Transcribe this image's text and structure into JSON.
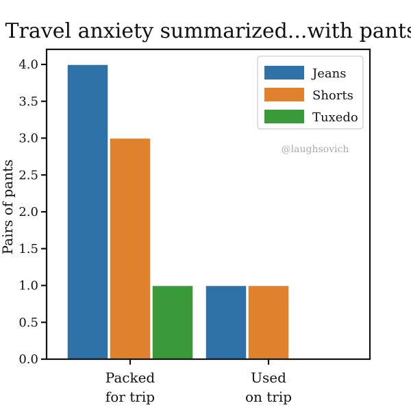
{
  "chart_data": {
    "type": "bar",
    "title": "Travel anxiety summarized...with pants",
    "xlabel": "",
    "ylabel": "Pairs of pants",
    "categories": [
      [
        "Packed",
        "for trip"
      ],
      [
        "Used",
        "on trip"
      ]
    ],
    "series": [
      {
        "name": "Jeans",
        "values": [
          4,
          1
        ],
        "color": "#2f72a8"
      },
      {
        "name": "Shorts",
        "values": [
          3,
          1
        ],
        "color": "#e0812e"
      },
      {
        "name": "Tuxedo",
        "values": [
          1,
          0
        ],
        "color": "#3a9a3a"
      }
    ],
    "ylim": [
      0,
      4.0
    ],
    "yticks": [
      "0.0",
      "0.5",
      "1.0",
      "1.5",
      "2.0",
      "2.5",
      "3.0",
      "3.5",
      "4.0"
    ],
    "grid": false,
    "legend_position": "top-right",
    "annotation": "@laughsovich"
  }
}
